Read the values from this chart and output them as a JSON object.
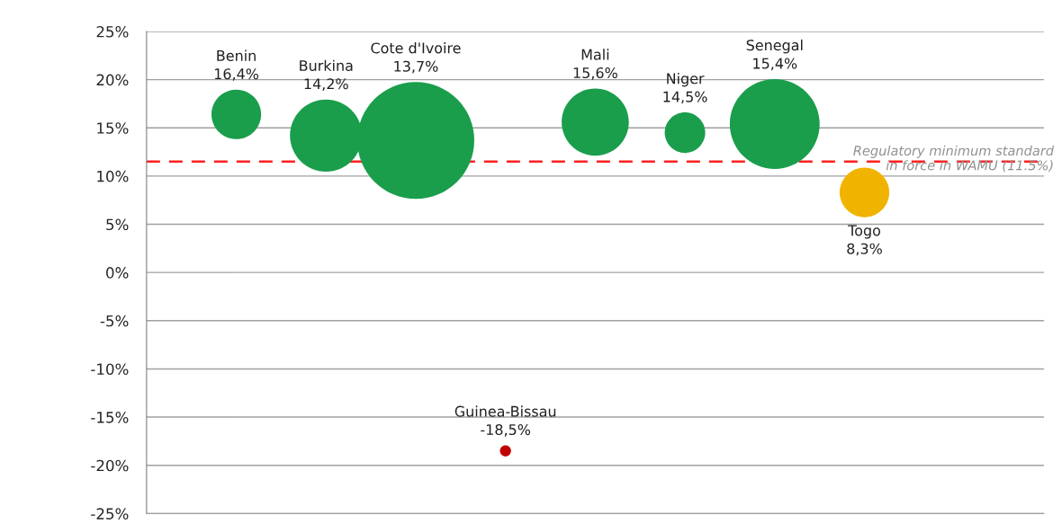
{
  "chart_data": {
    "type": "bubble",
    "categories": [
      "Benin",
      "Burkina",
      "Cote d'Ivoire",
      "Guinea-Bissau",
      "Mali",
      "Niger",
      "Senegal",
      "Togo"
    ],
    "values": [
      16.4,
      14.2,
      13.7,
      -18.5,
      15.6,
      14.5,
      15.4,
      8.3
    ],
    "value_labels": [
      "16,4%",
      "14,2%",
      "13,7%",
      "-18,5%",
      "15,6%",
      "14,5%",
      "15,4%",
      "8,3%"
    ],
    "sizes": [
      0.18,
      0.38,
      1,
      0.009,
      0.33,
      0.12,
      0.59,
      0.18
    ],
    "colors": [
      "#1a9e4c",
      "#1a9e4c",
      "#1a9e4c",
      "#c00000",
      "#1a9e4c",
      "#1a9e4c",
      "#1a9e4c",
      "#f0b400"
    ],
    "ylim": [
      -25,
      25
    ],
    "yticks": [
      {
        "value": 25,
        "label": "25%"
      },
      {
        "value": 20,
        "label": "20%"
      },
      {
        "value": 15,
        "label": "15%"
      },
      {
        "value": 10,
        "label": "10%"
      },
      {
        "value": 5,
        "label": "5%"
      },
      {
        "value": 0,
        "label": "0%"
      },
      {
        "value": -5,
        "label": "-5%"
      },
      {
        "value": -10,
        "label": "-10%"
      },
      {
        "value": -15,
        "label": "-15%"
      },
      {
        "value": -20,
        "label": "-20%"
      },
      {
        "value": -25,
        "label": "-25%"
      }
    ],
    "ref_lines": [
      {
        "axis": "y",
        "value": 11.5,
        "label": "Regulatory minimum standard\nin force in WAMU (11.5%)",
        "color": "#ff2020",
        "line_style": "dashed"
      }
    ],
    "grid": "y",
    "tick_labels": "y"
  }
}
